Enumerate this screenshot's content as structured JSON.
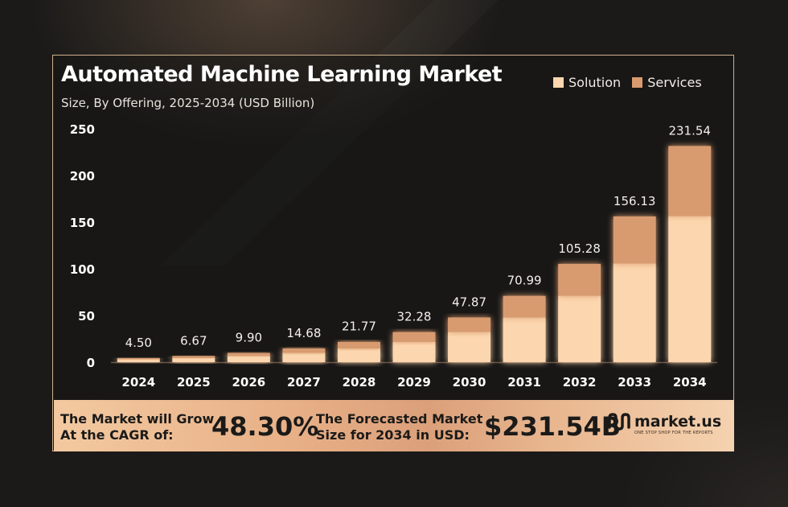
{
  "chart_data": {
    "type": "bar",
    "stacked": true,
    "title": "Automated Machine Learning Market",
    "subtitle": "Size, By Offering, 2025-2034 (USD Billion)",
    "categories": [
      "2024",
      "2025",
      "2026",
      "2027",
      "2028",
      "2029",
      "2030",
      "2031",
      "2032",
      "2033",
      "2034"
    ],
    "series": [
      {
        "name": "Solution",
        "color": "#fcd6ae",
        "values": [
          3.0,
          4.5,
          6.7,
          9.9,
          14.7,
          21.8,
          32.3,
          48.0,
          71.2,
          105.6,
          156.6
        ]
      },
      {
        "name": "Services",
        "color": "#d89b70",
        "values": [
          1.5,
          2.17,
          3.2,
          4.78,
          7.07,
          10.48,
          15.57,
          22.99,
          34.08,
          50.53,
          74.94
        ]
      }
    ],
    "totals": [
      4.5,
      6.67,
      9.9,
      14.68,
      21.77,
      32.28,
      47.87,
      70.99,
      105.28,
      156.13,
      231.54
    ],
    "total_labels": [
      "4.50",
      "6.67",
      "9.90",
      "14.68",
      "21.77",
      "32.28",
      "47.87",
      "70.99",
      "105.28",
      "156.13",
      "231.54"
    ],
    "yticks": [
      "0",
      "50",
      "100",
      "150",
      "200",
      "250"
    ],
    "ylim": [
      0,
      250
    ],
    "grid": false,
    "legend": "top-right"
  },
  "footer": {
    "cagr_line1": "The Market will Grow",
    "cagr_line2": "At the CAGR of:",
    "cagr_value": "48.30%",
    "forecast_line1": "The Forecasted Market",
    "forecast_line2": "Size for 2034 in USD:",
    "forecast_value": "$231.54B",
    "brand_name": "market.us",
    "brand_tagline": "ONE STOP SHOP FOR THE REPORTS",
    "brand_icon": "market-us-logo-icon"
  },
  "colors": {
    "background": "#1b1a19",
    "solution": "#fcd6ae",
    "services": "#d89b70",
    "card_border": "#cfb08f"
  }
}
